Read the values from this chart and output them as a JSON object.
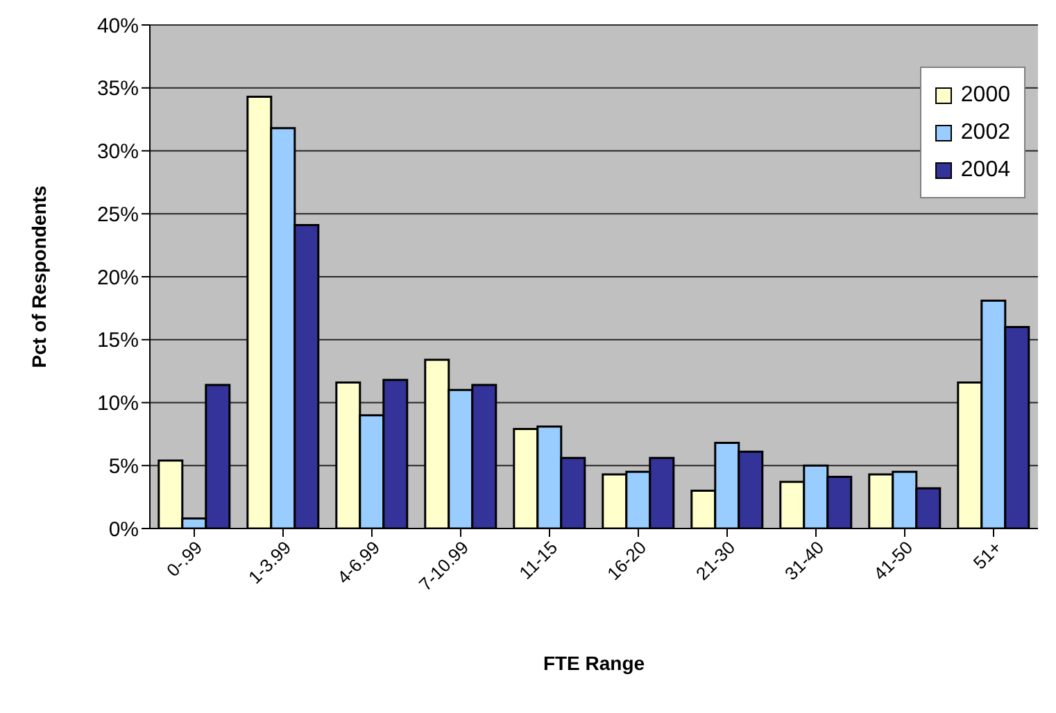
{
  "chart_data": {
    "type": "bar",
    "xlabel": "FTE Range",
    "ylabel": "Pct of Respondents",
    "categories": [
      "0-.99",
      "1-3.99",
      "4-6.99",
      "7-10.99",
      "11-15",
      "16-20",
      "21-30",
      "31-40",
      "41-50",
      "51+"
    ],
    "series": [
      {
        "name": "2000",
        "color": "#ffffcc",
        "values": [
          5.4,
          34.3,
          11.6,
          13.4,
          7.9,
          4.3,
          3.0,
          3.7,
          4.3,
          11.6
        ]
      },
      {
        "name": "2002",
        "color": "#99ccff",
        "values": [
          0.8,
          31.8,
          9.0,
          11.0,
          8.1,
          4.5,
          6.8,
          5.0,
          4.5,
          18.1
        ]
      },
      {
        "name": "2004",
        "color": "#333399",
        "values": [
          11.4,
          24.1,
          11.8,
          11.4,
          5.6,
          5.6,
          6.1,
          4.1,
          3.2,
          16.0
        ]
      }
    ],
    "ylim": [
      0,
      40
    ],
    "yticks": [
      {
        "value": 0,
        "label": "0%"
      },
      {
        "value": 5,
        "label": "5%"
      },
      {
        "value": 10,
        "label": "10%"
      },
      {
        "value": 15,
        "label": "15%"
      },
      {
        "value": 20,
        "label": "20%"
      },
      {
        "value": 25,
        "label": "25%"
      },
      {
        "value": 30,
        "label": "30%"
      },
      {
        "value": 35,
        "label": "35%"
      },
      {
        "value": 40,
        "label": "40%"
      }
    ],
    "grid": "y",
    "legend": "top right"
  }
}
